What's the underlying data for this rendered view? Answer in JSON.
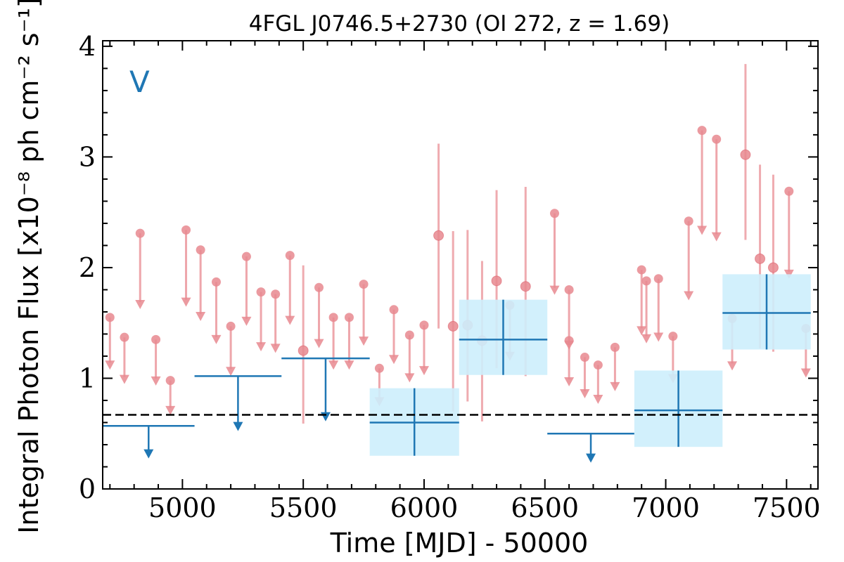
{
  "chart_data": {
    "type": "scatter",
    "title": "4FGL J0746.5+2730 (OI 272, z = 1.69)",
    "panel_label": "V",
    "xlabel": "Time [MJD] - 50000",
    "ylabel": "Integral Photon Flux [x10⁻⁸ ph cm⁻² s⁻¹]",
    "xlim": [
      4670,
      7630
    ],
    "ylim": [
      0,
      4.05
    ],
    "xticks": [
      5000,
      5500,
      6000,
      6500,
      7000,
      7500
    ],
    "xtick_labels": [
      "5000",
      "5500",
      "6000",
      "6500",
      "7000",
      "7500"
    ],
    "yticks": [
      0,
      1,
      2,
      3,
      4
    ],
    "ytick_labels": [
      "0",
      "1",
      "2",
      "3",
      "4"
    ],
    "reference_level": 0.67,
    "colors": {
      "fine_points": "#e8888f",
      "coarse_bins": "#1f77b4",
      "coarse_box": "#cdeefc",
      "reference_line": "#000000"
    },
    "series": [
      {
        "kind": "fine-binned upper limits",
        "points": [
          {
            "x": 4700,
            "y": 1.55
          },
          {
            "x": 4760,
            "y": 1.37
          },
          {
            "x": 4825,
            "y": 2.31
          },
          {
            "x": 4890,
            "y": 1.35
          },
          {
            "x": 4950,
            "y": 0.98
          },
          {
            "x": 5015,
            "y": 2.34
          },
          {
            "x": 5075,
            "y": 2.16
          },
          {
            "x": 5140,
            "y": 1.87
          },
          {
            "x": 5200,
            "y": 1.47
          },
          {
            "x": 5265,
            "y": 2.1
          },
          {
            "x": 5325,
            "y": 1.78
          },
          {
            "x": 5385,
            "y": 1.76
          },
          {
            "x": 5445,
            "y": 2.11
          },
          {
            "x": 5565,
            "y": 1.82
          },
          {
            "x": 5625,
            "y": 1.55
          },
          {
            "x": 5690,
            "y": 1.55
          },
          {
            "x": 5750,
            "y": 1.85
          },
          {
            "x": 5815,
            "y": 1.09
          },
          {
            "x": 5875,
            "y": 1.62
          },
          {
            "x": 5940,
            "y": 1.39
          },
          {
            "x": 6000,
            "y": 1.48
          },
          {
            "x": 6355,
            "y": 1.66
          },
          {
            "x": 6540,
            "y": 2.49
          },
          {
            "x": 6600,
            "y": 1.8
          },
          {
            "x": 6600,
            "y": 1.34
          },
          {
            "x": 6665,
            "y": 1.19
          },
          {
            "x": 6720,
            "y": 1.12
          },
          {
            "x": 6790,
            "y": 1.28
          },
          {
            "x": 6900,
            "y": 1.98
          },
          {
            "x": 6920,
            "y": 1.88
          },
          {
            "x": 6970,
            "y": 1.9
          },
          {
            "x": 7030,
            "y": 1.38
          },
          {
            "x": 7095,
            "y": 2.42
          },
          {
            "x": 7150,
            "y": 3.24
          },
          {
            "x": 7210,
            "y": 3.16
          },
          {
            "x": 7275,
            "y": 1.54
          },
          {
            "x": 7510,
            "y": 2.69
          },
          {
            "x": 7580,
            "y": 1.45
          }
        ]
      },
      {
        "kind": "fine-binned detections",
        "points": [
          {
            "x": 5500,
            "y": 1.25,
            "ylo": 0.59,
            "yhi": 2.02
          },
          {
            "x": 6060,
            "y": 2.29,
            "ylo": 1.45,
            "yhi": 3.12
          },
          {
            "x": 6120,
            "y": 1.47,
            "ylo": 0.7,
            "yhi": 2.33
          },
          {
            "x": 6180,
            "y": 1.48,
            "ylo": 0.79,
            "yhi": 2.34
          },
          {
            "x": 6240,
            "y": 1.34,
            "ylo": 0.61,
            "yhi": 2.06
          },
          {
            "x": 6300,
            "y": 1.88,
            "ylo": 1.09,
            "yhi": 2.7
          },
          {
            "x": 6420,
            "y": 1.83,
            "ylo": 1.02,
            "yhi": 2.73
          },
          {
            "x": 7330,
            "y": 3.02,
            "ylo": 2.25,
            "yhi": 3.84
          },
          {
            "x": 7390,
            "y": 2.08,
            "ylo": 1.27,
            "yhi": 2.93
          },
          {
            "x": 7445,
            "y": 2.0,
            "ylo": 1.24,
            "yhi": 2.84
          }
        ]
      },
      {
        "kind": "coarse-binned upper limits",
        "bins": [
          {
            "x0": 4670,
            "x1": 5050,
            "y": 0.57
          },
          {
            "x0": 5050,
            "x1": 5410,
            "y": 1.02
          },
          {
            "x0": 5410,
            "x1": 5775,
            "y": 1.18
          },
          {
            "x0": 6510,
            "x1": 6870,
            "y": 0.5
          }
        ]
      },
      {
        "kind": "coarse-binned detections",
        "bins": [
          {
            "x0": 5775,
            "x1": 6145,
            "y": 0.6,
            "ylo": 0.3,
            "yhi": 0.91
          },
          {
            "x0": 6145,
            "x1": 6510,
            "y": 1.35,
            "ylo": 1.03,
            "yhi": 1.71
          },
          {
            "x0": 6870,
            "x1": 7235,
            "y": 0.71,
            "ylo": 0.38,
            "yhi": 1.07
          },
          {
            "x0": 7235,
            "x1": 7600,
            "y": 1.59,
            "ylo": 1.26,
            "yhi": 1.94
          }
        ]
      }
    ]
  }
}
